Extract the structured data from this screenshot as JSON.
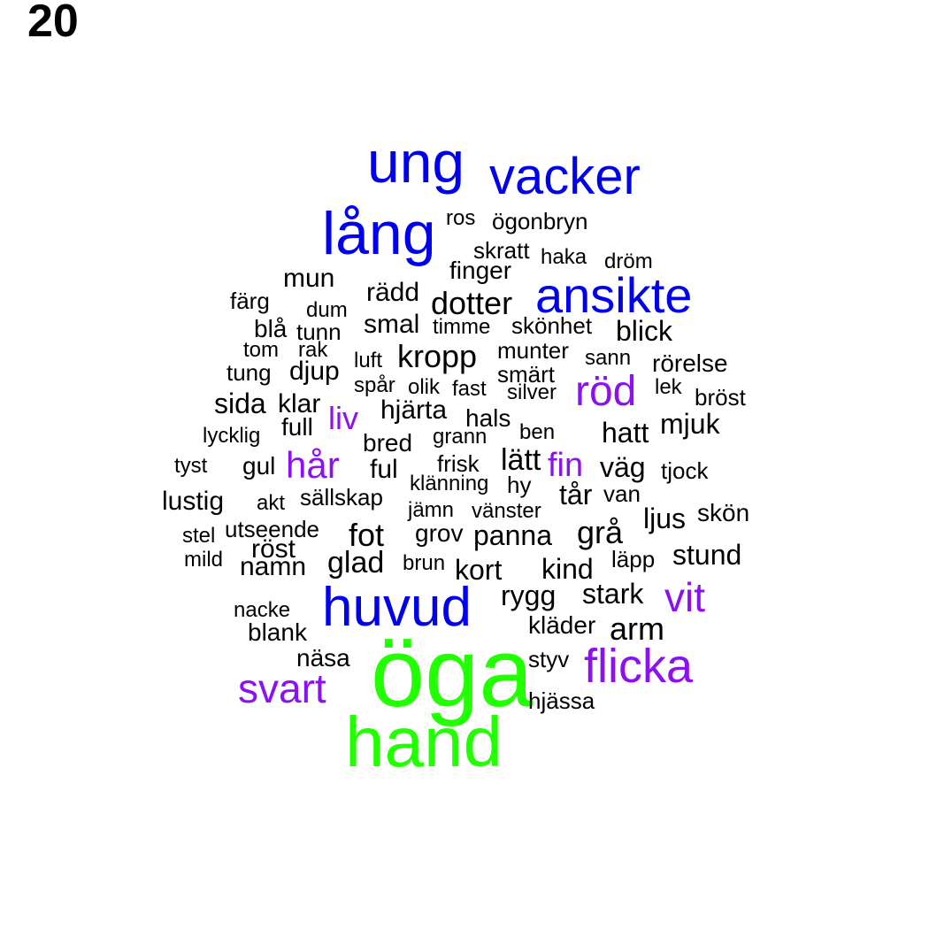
{
  "page_number": "20",
  "colors": {
    "black": "#000000",
    "blue": "#0000ee",
    "purple": "#8b12ee",
    "green": "#22ff00"
  },
  "words": [
    {
      "text": "öga",
      "color": "green"
    },
    {
      "text": "hand",
      "color": "green"
    },
    {
      "text": "ung",
      "color": "blue"
    },
    {
      "text": "vacker",
      "color": "blue"
    },
    {
      "text": "lång",
      "color": "blue"
    },
    {
      "text": "ansikte",
      "color": "blue"
    },
    {
      "text": "huvud",
      "color": "blue"
    },
    {
      "text": "röd",
      "color": "purple"
    },
    {
      "text": "liv",
      "color": "purple"
    },
    {
      "text": "hår",
      "color": "purple"
    },
    {
      "text": "fin",
      "color": "purple"
    },
    {
      "text": "vit",
      "color": "purple"
    },
    {
      "text": "flicka",
      "color": "purple"
    },
    {
      "text": "svart",
      "color": "purple"
    },
    {
      "text": "ros",
      "color": "black"
    },
    {
      "text": "ögonbryn",
      "color": "black"
    },
    {
      "text": "skratt",
      "color": "black"
    },
    {
      "text": "haka",
      "color": "black"
    },
    {
      "text": "dröm",
      "color": "black"
    },
    {
      "text": "finger",
      "color": "black"
    },
    {
      "text": "mun",
      "color": "black"
    },
    {
      "text": "rädd",
      "color": "black"
    },
    {
      "text": "dotter",
      "color": "black"
    },
    {
      "text": "färg",
      "color": "black"
    },
    {
      "text": "dum",
      "color": "black"
    },
    {
      "text": "smal",
      "color": "black"
    },
    {
      "text": "timme",
      "color": "black"
    },
    {
      "text": "skönhet",
      "color": "black"
    },
    {
      "text": "blick",
      "color": "black"
    },
    {
      "text": "blå",
      "color": "black"
    },
    {
      "text": "tunn",
      "color": "black"
    },
    {
      "text": "tom",
      "color": "black"
    },
    {
      "text": "rak",
      "color": "black"
    },
    {
      "text": "luft",
      "color": "black"
    },
    {
      "text": "kropp",
      "color": "black"
    },
    {
      "text": "munter",
      "color": "black"
    },
    {
      "text": "sann",
      "color": "black"
    },
    {
      "text": "rörelse",
      "color": "black"
    },
    {
      "text": "tung",
      "color": "black"
    },
    {
      "text": "djup",
      "color": "black"
    },
    {
      "text": "smärt",
      "color": "black"
    },
    {
      "text": "spår",
      "color": "black"
    },
    {
      "text": "olik",
      "color": "black"
    },
    {
      "text": "fast",
      "color": "black"
    },
    {
      "text": "silver",
      "color": "black"
    },
    {
      "text": "lek",
      "color": "black"
    },
    {
      "text": "bröst",
      "color": "black"
    },
    {
      "text": "sida",
      "color": "black"
    },
    {
      "text": "klar",
      "color": "black"
    },
    {
      "text": "hjärta",
      "color": "black"
    },
    {
      "text": "hals",
      "color": "black"
    },
    {
      "text": "full",
      "color": "black"
    },
    {
      "text": "grann",
      "color": "black"
    },
    {
      "text": "ben",
      "color": "black"
    },
    {
      "text": "hatt",
      "color": "black"
    },
    {
      "text": "mjuk",
      "color": "black"
    },
    {
      "text": "lycklig",
      "color": "black"
    },
    {
      "text": "bred",
      "color": "black"
    },
    {
      "text": "tyst",
      "color": "black"
    },
    {
      "text": "gul",
      "color": "black"
    },
    {
      "text": "ful",
      "color": "black"
    },
    {
      "text": "frisk",
      "color": "black"
    },
    {
      "text": "lätt",
      "color": "black"
    },
    {
      "text": "väg",
      "color": "black"
    },
    {
      "text": "tjock",
      "color": "black"
    },
    {
      "text": "klänning",
      "color": "black"
    },
    {
      "text": "hy",
      "color": "black"
    },
    {
      "text": "tår",
      "color": "black"
    },
    {
      "text": "van",
      "color": "black"
    },
    {
      "text": "lustig",
      "color": "black"
    },
    {
      "text": "akt",
      "color": "black"
    },
    {
      "text": "sällskap",
      "color": "black"
    },
    {
      "text": "jämn",
      "color": "black"
    },
    {
      "text": "vänster",
      "color": "black"
    },
    {
      "text": "ljus",
      "color": "black"
    },
    {
      "text": "skön",
      "color": "black"
    },
    {
      "text": "stel",
      "color": "black"
    },
    {
      "text": "utseende",
      "color": "black"
    },
    {
      "text": "fot",
      "color": "black"
    },
    {
      "text": "grov",
      "color": "black"
    },
    {
      "text": "panna",
      "color": "black"
    },
    {
      "text": "grå",
      "color": "black"
    },
    {
      "text": "mild",
      "color": "black"
    },
    {
      "text": "röst",
      "color": "black"
    },
    {
      "text": "glad",
      "color": "black"
    },
    {
      "text": "brun",
      "color": "black"
    },
    {
      "text": "läpp",
      "color": "black"
    },
    {
      "text": "stund",
      "color": "black"
    },
    {
      "text": "namn",
      "color": "black"
    },
    {
      "text": "kort",
      "color": "black"
    },
    {
      "text": "kind",
      "color": "black"
    },
    {
      "text": "rygg",
      "color": "black"
    },
    {
      "text": "stark",
      "color": "black"
    },
    {
      "text": "nacke",
      "color": "black"
    },
    {
      "text": "kläder",
      "color": "black"
    },
    {
      "text": "arm",
      "color": "black"
    },
    {
      "text": "blank",
      "color": "black"
    },
    {
      "text": "näsa",
      "color": "black"
    },
    {
      "text": "styv",
      "color": "black"
    },
    {
      "text": "hjässa",
      "color": "black"
    }
  ]
}
